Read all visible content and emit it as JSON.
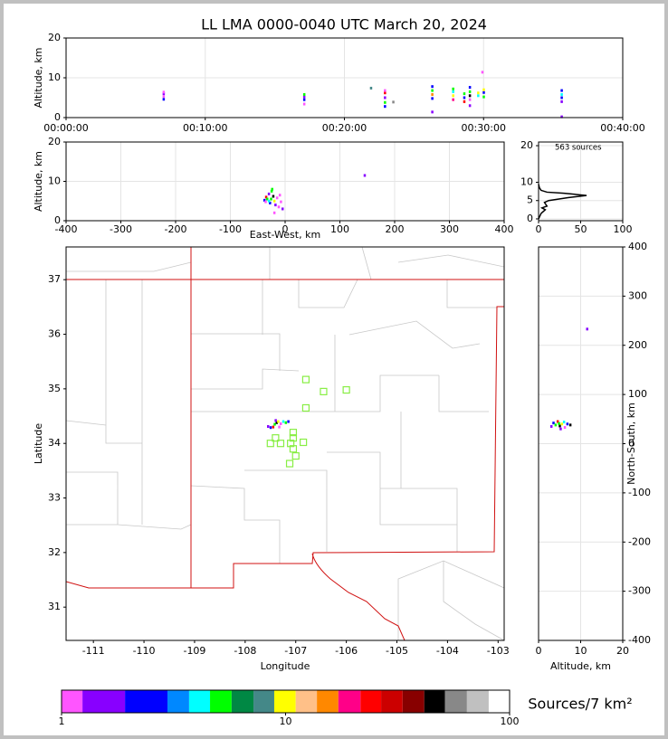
{
  "chart_data": [
    {
      "type": "scatter",
      "title": "LL LMA 0000-0040 UTC March 20, 2024",
      "ylabel": "Altitude, km",
      "xlim": [
        0,
        40
      ],
      "ylim": [
        0,
        20
      ],
      "xticks": [
        {
          "value": 0,
          "label": "00:00:00"
        },
        {
          "value": 10,
          "label": "00:10:00"
        },
        {
          "value": 20,
          "label": "00:20:00"
        },
        {
          "value": 30,
          "label": "00:30:00"
        },
        {
          "value": 40,
          "label": "00:40:00"
        }
      ],
      "yticks": [
        0,
        10,
        20
      ],
      "grid": true,
      "x": [
        7.0,
        7.0,
        7.0,
        7.0,
        17.1,
        17.1,
        17.1,
        17.1,
        21.9,
        22.9,
        22.9,
        22.9,
        22.9,
        22.9,
        23.5,
        26.3,
        26.3,
        26.3,
        26.3,
        26.3,
        27.8,
        27.8,
        27.8,
        27.8,
        28.6,
        28.6,
        28.6,
        29.0,
        29.0,
        29.0,
        29.0,
        29.0,
        29.6,
        29.6,
        30.0,
        30.0,
        30.0,
        29.9,
        35.6,
        35.6,
        35.6,
        35.6,
        35.6
      ],
      "values": [
        4.6,
        5.3,
        6.0,
        6.4,
        3.4,
        4.5,
        5.2,
        5.8,
        7.4,
        2.8,
        3.8,
        5.0,
        6.2,
        6.8,
        3.9,
        4.8,
        5.8,
        6.8,
        7.8,
        1.4,
        4.5,
        5.5,
        6.5,
        7.2,
        4.0,
        5.0,
        6.0,
        3.0,
        4.5,
        5.5,
        6.5,
        7.6,
        5.5,
        6.2,
        5.2,
        6.3,
        7.0,
        11.4,
        4.0,
        5.0,
        5.8,
        6.8,
        0.2
      ],
      "colors": [
        "#0000ff",
        "#ff55ff",
        "#8800ff",
        "#ff55ff",
        "#ff55ff",
        "#0000ff",
        "#8800ff",
        "#00ff00",
        "#448888",
        "#0000ff",
        "#00ff00",
        "#8800ff",
        "#ff0000",
        "#ff55ff",
        "#888888",
        "#0000ff",
        "#ff8800",
        "#00ff00",
        "#0000ff",
        "#8800ff",
        "#ff0088",
        "#ffff00",
        "#00ffff",
        "#00ff00",
        "#ff0000",
        "#0000ff",
        "#00ff00",
        "#8800ff",
        "#ff55ff",
        "#000000",
        "#00ff00",
        "#0000ff",
        "#00ffff",
        "#ffff00",
        "#00ff00",
        "#0000ff",
        "#ffff00",
        "#ff55ff",
        "#8800ff",
        "#0000ff",
        "#00ffff",
        "#0000ff",
        "#8800ff"
      ]
    },
    {
      "type": "scatter",
      "xlabel": "East-West, km",
      "ylabel": "Altitude, km",
      "xlim": [
        -400,
        400
      ],
      "ylim": [
        0,
        20
      ],
      "xticks": [
        -400,
        -300,
        -200,
        -100,
        0,
        100,
        200,
        300,
        400
      ],
      "yticks": [
        0,
        10,
        20
      ],
      "grid": true,
      "x": [
        -38,
        -35,
        -33,
        -30,
        -28,
        -25,
        -22,
        -20,
        -18,
        -15,
        -12,
        -10,
        -8,
        -5,
        -26,
        -24,
        -30,
        -36,
        -20,
        145
      ],
      "values": [
        5.2,
        6.0,
        5.5,
        6.8,
        4.5,
        7.5,
        6.2,
        5.0,
        4.0,
        5.8,
        3.5,
        6.5,
        4.8,
        3.0,
        5.5,
        8.0,
        5.0,
        4.8,
        2.0,
        11.5
      ],
      "colors": [
        "#0000ff",
        "#ff0000",
        "#00ff00",
        "#8800ff",
        "#0000ff",
        "#00ff00",
        "#000000",
        "#ffff00",
        "#8800ff",
        "#ff55ff",
        "#ff55ff",
        "#ff55ff",
        "#ff55ff",
        "#8800ff",
        "#00ff00",
        "#00ff00",
        "#00ffff",
        "#ff55ff",
        "#ff55ff",
        "#8800ff"
      ]
    },
    {
      "type": "line",
      "annotation": "563 sources",
      "xlim": [
        0,
        100
      ],
      "ylim": [
        -0.5,
        21
      ],
      "xticks": [
        0,
        50,
        100
      ],
      "yticks": [
        0,
        5,
        10,
        20
      ],
      "grid": true,
      "color": "#000000",
      "x": [
        0,
        1,
        3,
        8,
        4,
        10,
        7,
        12,
        35,
        57,
        30,
        10,
        3,
        1,
        0
      ],
      "values": [
        0,
        0.5,
        1.5,
        2.5,
        3.0,
        3.5,
        4.5,
        5.0,
        5.8,
        6.4,
        7.0,
        7.3,
        7.8,
        8.5,
        9.5
      ]
    },
    {
      "type": "map",
      "xlabel": "Longitude",
      "ylabel": "Latitude",
      "xlim": [
        -111.54,
        -102.88
      ],
      "ylim": [
        30.39,
        37.6
      ],
      "xticks": [
        -111,
        -110,
        -109,
        -108,
        -107,
        -106,
        -105,
        -104,
        -103
      ],
      "yticks": [
        31,
        32,
        33,
        34,
        35,
        36,
        37
      ],
      "grid": false,
      "x": [
        -107.45,
        -107.5,
        -107.42,
        -107.38,
        -107.35,
        -107.4,
        -107.3,
        -107.25,
        -107.15,
        -107.55,
        -107.33,
        -107.2
      ],
      "values": [
        34.3,
        34.29,
        34.35,
        34.38,
        34.4,
        34.42,
        34.36,
        34.4,
        34.4,
        34.31,
        34.3,
        34.38
      ],
      "colors": [
        "#ff0000",
        "#0000ff",
        "#00ff00",
        "#000000",
        "#ffff00",
        "#8800ff",
        "#ff55ff",
        "#00ffff",
        "#0000ff",
        "#8800ff",
        "#ff55ff",
        "#00ff00"
      ],
      "stations": {
        "x": [
          -106.8,
          -106.45,
          -106.0,
          -106.8,
          -107.05,
          -107.05,
          -107.4,
          -107.5,
          -107.3,
          -107.1,
          -106.85,
          -107.05,
          -107.0,
          -107.12
        ],
        "y": [
          35.17,
          34.95,
          34.98,
          34.65,
          34.2,
          34.1,
          34.1,
          34.0,
          34.0,
          34.0,
          34.02,
          33.9,
          33.77,
          33.63
        ],
        "color": "#88ee44"
      }
    },
    {
      "type": "scatter",
      "xlabel": "Altitude, km",
      "ylabel": "North-South, km",
      "yaxis_side": "right",
      "xlim": [
        0,
        20
      ],
      "ylim": [
        -400,
        400
      ],
      "xticks": [
        0,
        10,
        20
      ],
      "yticks": [
        -400,
        -300,
        -200,
        -100,
        0,
        100,
        200,
        300,
        400
      ],
      "grid": true,
      "x": [
        3.0,
        3.5,
        4.0,
        4.5,
        5.0,
        5.5,
        6.0,
        6.2,
        6.8,
        7.5,
        5.2,
        4.8,
        11.5
      ],
      "values": [
        35,
        42,
        38,
        45,
        36,
        40,
        44,
        33,
        40,
        38,
        30,
        41,
        233
      ],
      "colors": [
        "#8800ff",
        "#0000ff",
        "#00ff00",
        "#ff0000",
        "#000000",
        "#ffff00",
        "#00ffff",
        "#ff55ff",
        "#0000ff",
        "#000000",
        "#8800ff",
        "#00ff00",
        "#8800ff"
      ]
    },
    {
      "type": "colorbar",
      "label": "Sources/7 km²",
      "log": true,
      "xlim": [
        1,
        100
      ],
      "xticks": [
        1,
        10,
        100
      ],
      "bounds": [
        1,
        1.24,
        1.92,
        2.97,
        3.71,
        4.6,
        5.74,
        7.19,
        8.9,
        11.1,
        13.8,
        17.2,
        21.6,
        26.7,
        33.3,
        41.6,
        51.5,
        64.5,
        80.7,
        100
      ],
      "colors": [
        "#ff55ff",
        "#8800ff",
        "#0000ff",
        "#0088ff",
        "#00ffff",
        "#00ff00",
        "#008844",
        "#448888",
        "#ffff00",
        "#ffc088",
        "#ff8800",
        "#ff0088",
        "#ff0000",
        "#cc0000",
        "#880000",
        "#000000",
        "#888888",
        "#c0c0c0",
        "#ffffff"
      ]
    }
  ]
}
